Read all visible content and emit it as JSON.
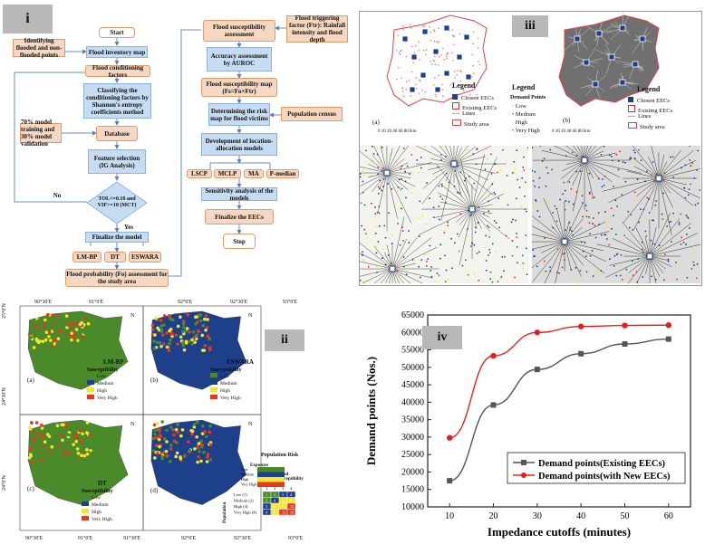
{
  "panel_i": {
    "tag": "i",
    "boxes": {
      "start": "Start",
      "identify": "Identifying flooded and non-flooded points",
      "inventory": "Flood inventory map",
      "conditioning": "Flood conditioning factors",
      "classifying": "Classifying the conditioning factors by Shannon's entropy coefficients method",
      "split": "70% model training and 30% model validation",
      "database": "Database",
      "feature": "Feature selection (IG Analysis)",
      "tol": "TOL<=0.10 and VIF>=10 (MCT)",
      "no": "No",
      "yes": "Yes",
      "finalize": "Finalize the model",
      "lmbp": "LM-BP",
      "dt": "DT",
      "eswara": "ESWARA",
      "prob": "Flood probability (Fo) assessment for the study area",
      "suscept": "Flood susceptibility assessment",
      "trigger": "Flood triggering factor (Ftr): Rainfall intensity and flood depth",
      "accuracy": "Accuracy assessment by AUROC",
      "susmap": "Flood susceptibility map (Fs=Fo×Ftr)",
      "risk": "Determining the risk map for flood victims",
      "census": "Population census",
      "develop": "Development of location-allocation models",
      "lscp": "LSCP",
      "mclp": "MCLP",
      "ma": "MA",
      "pmedian": "P-median",
      "sensitivity": "Sensitivity analysis of the models",
      "finalize_eec": "Finalize the EECs",
      "stop": "Stop"
    }
  },
  "panel_ii": {
    "tag": "ii",
    "lon_top": [
      "90°30'E",
      "91°0'E",
      "92°0'E",
      "92°30'E",
      "93°0'E"
    ],
    "lon_bottom": [
      "90°30'E",
      "91°0'E",
      "91°30'E",
      "92°0'E",
      "92°30'E",
      "93°0'E"
    ],
    "lat": [
      "25°0'N",
      "24°30'N",
      "24°0'N"
    ],
    "maps": [
      {
        "label": "(a)",
        "model": "LM-BP"
      },
      {
        "label": "(b)",
        "model": "ESWARA"
      },
      {
        "label": "(c)",
        "model": "DT"
      },
      {
        "label": "(d)",
        "model": ""
      }
    ],
    "susceptibility_title": "Susceptibility",
    "classes": [
      "Low",
      "Medium",
      "High",
      "Very High"
    ],
    "class_colors": [
      "#4a8a2a",
      "#1e3f8a",
      "#f2e633",
      "#e23a1e"
    ],
    "scale": "0 10 20   40   60   80 Km",
    "risk": {
      "title": "Population Risk",
      "exposure": "Exposure",
      "exp_levels": [
        "Low",
        "Medium",
        "High",
        "Very High"
      ],
      "flood_susc": "Flood Susceptibility",
      "population": "Population",
      "rows": [
        "Low (1)",
        "Medium (2)",
        "High (3)",
        "Very High (4)"
      ],
      "cols": [
        "1",
        "2",
        "3",
        "4"
      ],
      "matrix": [
        [
          "1",
          "2",
          "3",
          "4"
        ],
        [
          "2",
          "4",
          "6",
          "8"
        ],
        [
          "3",
          "6",
          "9",
          "12"
        ],
        [
          "4",
          "8",
          "12",
          "16"
        ]
      ]
    }
  },
  "panel_iii": {
    "tag": "iii",
    "map_a": "(a)",
    "map_b": "(b)",
    "legend": "Legend",
    "chosen": "Chosen EECs",
    "existing": "Existing EECs",
    "lines": "Lines",
    "study": "Study area",
    "demand_title": "Demand Points",
    "demand_levels": [
      "Low",
      "Medium",
      "High",
      "Very High"
    ],
    "scale": "0 10 20      40      60      80 Km"
  },
  "panel_iv": {
    "tag": "iv"
  },
  "chart_data": {
    "type": "line",
    "xlabel": "Impedance cutoffs (minutes)",
    "ylabel": "Demand points (Nos.)",
    "x": [
      10,
      20,
      30,
      40,
      50,
      60
    ],
    "xlim": [
      5,
      65
    ],
    "ylim": [
      10000,
      65000
    ],
    "yticks": [
      10000,
      15000,
      20000,
      25000,
      30000,
      35000,
      40000,
      45000,
      50000,
      55000,
      60000,
      65000
    ],
    "series": [
      {
        "name": "Demand points(Existing EECs)",
        "color": "#555555",
        "values": [
          17500,
          39200,
          49400,
          53900,
          56700,
          58100
        ]
      },
      {
        "name": "Demand points(with New EECs)",
        "color": "#e02020",
        "values": [
          29800,
          53300,
          60000,
          61700,
          62000,
          62100
        ]
      }
    ],
    "legend_position": "bottom-right"
  }
}
